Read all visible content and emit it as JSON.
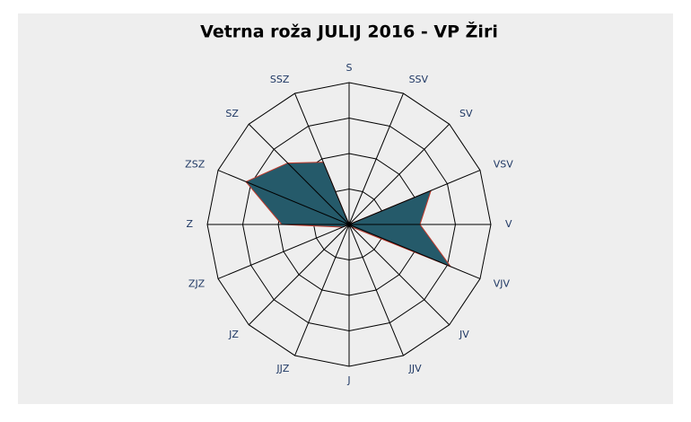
{
  "chart_data": {
    "type": "radar",
    "title": "Vetrna roža JULIJ 2016 - VP Žiri",
    "categories": [
      "S",
      "SSV",
      "SV",
      "VSV",
      "V",
      "VJV",
      "JV",
      "JJV",
      "J",
      "JJZ",
      "JZ",
      "ZJZ",
      "Z",
      "ZSZ",
      "SZ",
      "SSZ"
    ],
    "values": [
      0,
      0,
      0,
      2.5,
      2,
      3.1,
      0.1,
      0,
      0,
      0,
      0,
      0.2,
      1.9,
      3.15,
      2.45,
      1.9
    ],
    "color": "#255a6a",
    "edge_color": "#c0392b",
    "rlim": [
      0,
      4
    ],
    "rticks": [
      1,
      2,
      3,
      4
    ],
    "grid": true
  }
}
